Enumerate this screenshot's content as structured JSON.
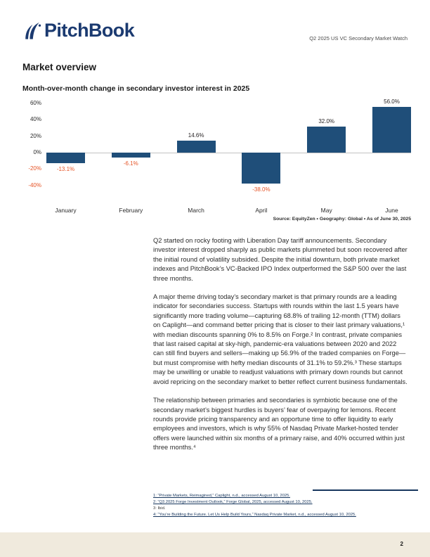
{
  "header": {
    "logo_text": "PitchBook",
    "doc_title": "Q2 2025 US VC Secondary Market Watch"
  },
  "section_title": "Market overview",
  "chart_data": {
    "type": "bar",
    "title": "Month-over-month change in secondary investor interest in 2025",
    "categories": [
      "January",
      "February",
      "March",
      "April",
      "May",
      "June"
    ],
    "values": [
      -13.1,
      -6.1,
      14.6,
      -38.0,
      32.0,
      56.0
    ],
    "labels": [
      "-13.1%",
      "-6.1%",
      "14.6%",
      "-38.0%",
      "32.0%",
      "56.0%"
    ],
    "y_ticks": [
      60,
      40,
      20,
      0,
      -20,
      -40
    ],
    "y_tick_labels": [
      "60%",
      "40%",
      "20%",
      "0%",
      "-20%",
      "-40%"
    ],
    "ylim": [
      -40,
      60
    ],
    "grid": "zero-line-only",
    "legend": "none",
    "source": "Source: EquityZen  •  Geography: Global  •  As of June 30, 2025",
    "bar_color": "#1f4e79",
    "positive_label_color": "#231f20",
    "negative_label_color": "#e65427"
  },
  "body": {
    "paragraphs": [
      "Q2 started on rocky footing with Liberation Day tariff announcements. Secondary investor interest dropped sharply as public markets plummeted but soon recovered after the initial round of volatility subsided. Despite the initial downturn, both private market indexes and PitchBook’s VC-Backed IPO Index outperformed the S&P 500 over the last three months.",
      "A major theme driving today’s secondary market is that primary rounds are a leading indicator for secondaries success. Startups with rounds within the last 1.5 years have significantly more trading volume—capturing 68.8% of trailing 12-month (TTM) dollars on Caplight—and command better pricing that is closer to their last primary valuations,¹ with median discounts spanning 0% to 8.5% on Forge.² In contrast, private companies that last raised capital at sky-high, pandemic-era valuations between 2020 and 2022 can still find buyers and sellers—making up 56.9% of the traded companies on Forge—but must compromise with hefty median discounts of 31.1% to 59.2%.³ These startups may be unwilling or unable to readjust valuations with primary down rounds but cannot avoid repricing on the secondary market to better reflect current business fundamentals.",
      "The relationship between primaries and secondaries is symbiotic because one of the secondary market’s biggest hurdles is buyers’ fear of overpaying for lemons. Recent rounds provide pricing transparency and an opportune time to offer liquidity to early employees and investors, which is why 55% of Nasdaq Private Market-hosted tender offers were launched within six months of a primary raise, and 40% occurred within just three months.⁴"
    ]
  },
  "footnotes": {
    "items": [
      {
        "text": "1: “Private Markets, Reimagined,” Caplight, n.d., accessed August 10, 2025.",
        "link": true
      },
      {
        "text": "2: “Q3 2025 Forge Investment Outlook,” Forge Global, 2025, accessed August 10, 2025.",
        "link": true
      },
      {
        "text": "3: Ibid.",
        "link": false
      },
      {
        "text": "4: “You’re Building the Future. Let Us Help Build Yours,” Nasdaq Private Market, n.d., accessed August 10, 2025.",
        "link": true
      }
    ]
  },
  "footer": {
    "page_number": "2"
  }
}
